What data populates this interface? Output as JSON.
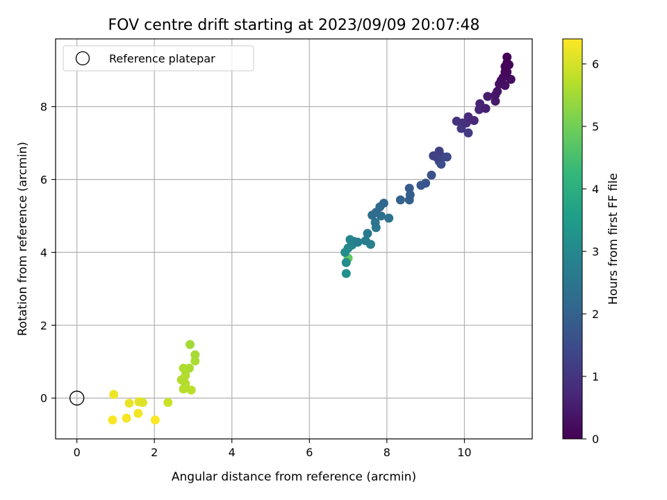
{
  "chart_data": {
    "type": "scatter",
    "title": "FOV centre drift starting at 2023/09/09 20:07:48",
    "xlabel": "Angular distance from reference (arcmin)",
    "ylabel": "Rotation from reference (arcmin)",
    "xlim": [
      -0.55,
      11.75
    ],
    "ylim": [
      -1.12,
      9.86
    ],
    "xticks": [
      0,
      2,
      4,
      6,
      8,
      10
    ],
    "yticks": [
      0,
      2,
      4,
      6,
      8
    ],
    "grid": true,
    "legend": {
      "position": "top-left",
      "entries": [
        "Reference platepar"
      ]
    },
    "reference_point": {
      "x": 0,
      "y": 0,
      "marker": "open-circle",
      "color": "#000000"
    },
    "colorbar": {
      "label": "Hours from first FF file",
      "range": [
        0,
        6.4
      ],
      "ticks": [
        0,
        1,
        2,
        3,
        4,
        5,
        6
      ],
      "colormap": "viridis",
      "stops": [
        "#440154",
        "#482878",
        "#3e4989",
        "#31688e",
        "#26828e",
        "#1f9e89",
        "#35b779",
        "#6ece58",
        "#b5de2b",
        "#fde725"
      ]
    },
    "series": [
      {
        "points": [
          {
            "x": 11.1,
            "y": 9.36,
            "t": 0.02
          },
          {
            "x": 11.1,
            "y": 9.2,
            "t": 0.05
          },
          {
            "x": 11.15,
            "y": 9.15,
            "t": 0.08
          },
          {
            "x": 11.05,
            "y": 9.1,
            "t": 0.1
          },
          {
            "x": 11.05,
            "y": 8.95,
            "t": 0.13
          },
          {
            "x": 11.1,
            "y": 8.95,
            "t": 0.16
          },
          {
            "x": 11.0,
            "y": 8.8,
            "t": 0.19
          },
          {
            "x": 11.2,
            "y": 8.75,
            "t": 0.22
          },
          {
            "x": 10.95,
            "y": 8.72,
            "t": 0.25
          },
          {
            "x": 10.9,
            "y": 8.62,
            "t": 0.28
          },
          {
            "x": 11.05,
            "y": 8.58,
            "t": 0.31
          },
          {
            "x": 10.85,
            "y": 8.42,
            "t": 0.35
          },
          {
            "x": 10.8,
            "y": 8.32,
            "t": 0.4
          },
          {
            "x": 10.8,
            "y": 8.15,
            "t": 0.45
          },
          {
            "x": 10.6,
            "y": 8.28,
            "t": 0.5
          },
          {
            "x": 10.55,
            "y": 7.95,
            "t": 0.55
          },
          {
            "x": 10.4,
            "y": 8.08,
            "t": 0.62
          },
          {
            "x": 10.38,
            "y": 7.92,
            "t": 0.68
          },
          {
            "x": 10.25,
            "y": 7.62,
            "t": 0.74
          },
          {
            "x": 10.1,
            "y": 7.72,
            "t": 0.8
          },
          {
            "x": 10.05,
            "y": 7.55,
            "t": 0.86
          },
          {
            "x": 9.8,
            "y": 7.6,
            "t": 0.92
          },
          {
            "x": 9.95,
            "y": 7.55,
            "t": 0.98
          },
          {
            "x": 9.92,
            "y": 7.4,
            "t": 1.04
          },
          {
            "x": 10.1,
            "y": 7.28,
            "t": 1.1
          },
          {
            "x": 9.35,
            "y": 6.78,
            "t": 1.2
          },
          {
            "x": 9.2,
            "y": 6.65,
            "t": 1.26
          },
          {
            "x": 9.3,
            "y": 6.6,
            "t": 1.32
          },
          {
            "x": 9.45,
            "y": 6.62,
            "t": 1.38
          },
          {
            "x": 9.55,
            "y": 6.62,
            "t": 1.44
          },
          {
            "x": 9.35,
            "y": 6.5,
            "t": 1.5
          },
          {
            "x": 9.4,
            "y": 6.42,
            "t": 1.56
          },
          {
            "x": 9.15,
            "y": 6.12,
            "t": 1.62
          },
          {
            "x": 9.0,
            "y": 5.9,
            "t": 1.7
          },
          {
            "x": 8.88,
            "y": 5.84,
            "t": 1.76
          },
          {
            "x": 8.58,
            "y": 5.76,
            "t": 1.84
          },
          {
            "x": 8.6,
            "y": 5.58,
            "t": 1.9
          },
          {
            "x": 8.58,
            "y": 5.44,
            "t": 1.96
          },
          {
            "x": 8.35,
            "y": 5.44,
            "t": 2.02
          },
          {
            "x": 7.92,
            "y": 5.35,
            "t": 2.12
          },
          {
            "x": 7.82,
            "y": 5.25,
            "t": 2.18
          },
          {
            "x": 7.72,
            "y": 5.1,
            "t": 2.24
          },
          {
            "x": 7.62,
            "y": 5.02,
            "t": 2.3
          },
          {
            "x": 7.85,
            "y": 5.0,
            "t": 2.36
          },
          {
            "x": 8.05,
            "y": 4.94,
            "t": 2.42
          },
          {
            "x": 7.7,
            "y": 4.82,
            "t": 2.48
          },
          {
            "x": 7.72,
            "y": 4.68,
            "t": 2.54
          },
          {
            "x": 7.5,
            "y": 4.52,
            "t": 2.62
          },
          {
            "x": 7.45,
            "y": 4.32,
            "t": 2.68
          },
          {
            "x": 7.25,
            "y": 4.28,
            "t": 2.74
          },
          {
            "x": 7.58,
            "y": 4.22,
            "t": 2.8
          },
          {
            "x": 7.15,
            "y": 4.3,
            "t": 2.86
          },
          {
            "x": 7.05,
            "y": 4.35,
            "t": 2.92
          },
          {
            "x": 7.1,
            "y": 4.2,
            "t": 2.98
          },
          {
            "x": 7.0,
            "y": 4.12,
            "t": 3.04
          },
          {
            "x": 6.92,
            "y": 4.0,
            "t": 3.1
          },
          {
            "x": 6.95,
            "y": 3.72,
            "t": 3.16
          },
          {
            "x": 6.95,
            "y": 3.42,
            "t": 3.22
          },
          {
            "x": 7.0,
            "y": 3.84,
            "t": 4.8
          },
          {
            "x": 2.92,
            "y": 1.47,
            "t": 5.5
          },
          {
            "x": 3.05,
            "y": 1.19,
            "t": 5.55
          },
          {
            "x": 3.05,
            "y": 1.02,
            "t": 5.58
          },
          {
            "x": 2.9,
            "y": 0.82,
            "t": 5.6
          },
          {
            "x": 2.75,
            "y": 0.82,
            "t": 5.62
          },
          {
            "x": 2.8,
            "y": 0.62,
            "t": 5.64
          },
          {
            "x": 2.7,
            "y": 0.5,
            "t": 5.66
          },
          {
            "x": 2.8,
            "y": 0.4,
            "t": 5.68
          },
          {
            "x": 2.8,
            "y": 0.28,
            "t": 5.7
          },
          {
            "x": 2.75,
            "y": 0.25,
            "t": 5.72
          },
          {
            "x": 2.95,
            "y": 0.22,
            "t": 5.74
          },
          {
            "x": 2.35,
            "y": -0.12,
            "t": 5.9
          },
          {
            "x": 1.7,
            "y": -0.12,
            "t": 6.1
          },
          {
            "x": 1.6,
            "y": -0.1,
            "t": 6.15
          },
          {
            "x": 1.35,
            "y": -0.14,
            "t": 6.2
          },
          {
            "x": 0.95,
            "y": 0.1,
            "t": 6.25
          },
          {
            "x": 1.58,
            "y": -0.42,
            "t": 6.28
          },
          {
            "x": 1.28,
            "y": -0.55,
            "t": 6.32
          },
          {
            "x": 0.92,
            "y": -0.6,
            "t": 6.35
          },
          {
            "x": 2.02,
            "y": -0.6,
            "t": 6.38
          }
        ]
      }
    ]
  }
}
